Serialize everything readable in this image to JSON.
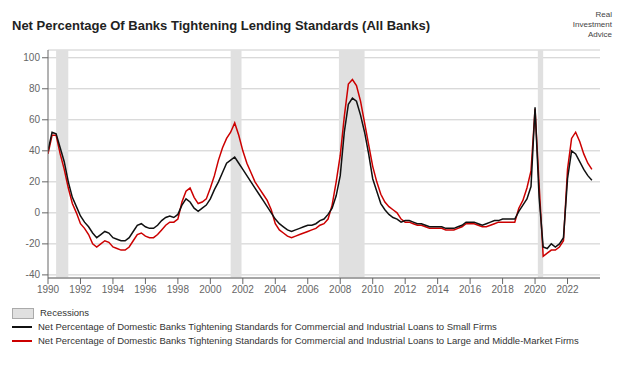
{
  "chart_data": {
    "type": "line",
    "title": "Net Percentage Of Banks Tightening Lending Standards (All Banks)",
    "annotations": [
      "Real\nInvestment\nAdvice"
    ],
    "x": [
      1990,
      1990.25,
      1990.5,
      1990.75,
      1991,
      1991.25,
      1991.5,
      1991.75,
      1992,
      1992.25,
      1992.5,
      1992.75,
      1993,
      1993.25,
      1993.5,
      1993.75,
      1994,
      1994.25,
      1994.5,
      1994.75,
      1995,
      1995.25,
      1995.5,
      1995.75,
      1996,
      1996.25,
      1996.5,
      1996.75,
      1997,
      1997.25,
      1997.5,
      1997.75,
      1998,
      1998.25,
      1998.5,
      1998.75,
      1999,
      1999.25,
      1999.5,
      1999.75,
      2000,
      2000.25,
      2000.5,
      2000.75,
      2001,
      2001.25,
      2001.5,
      2001.75,
      2002,
      2002.25,
      2002.5,
      2002.75,
      2003,
      2003.25,
      2003.5,
      2003.75,
      2004,
      2004.25,
      2004.5,
      2004.75,
      2005,
      2005.25,
      2005.5,
      2005.75,
      2006,
      2006.25,
      2006.5,
      2006.75,
      2007,
      2007.25,
      2007.5,
      2007.75,
      2008,
      2008.25,
      2008.5,
      2008.75,
      2009,
      2009.25,
      2009.5,
      2009.75,
      2010,
      2010.25,
      2010.5,
      2010.75,
      2011,
      2011.25,
      2011.5,
      2011.75,
      2012,
      2012.25,
      2012.5,
      2012.75,
      2013,
      2013.25,
      2013.5,
      2013.75,
      2014,
      2014.25,
      2014.5,
      2014.75,
      2015,
      2015.25,
      2015.5,
      2015.75,
      2016,
      2016.25,
      2016.5,
      2016.75,
      2017,
      2017.25,
      2017.5,
      2017.75,
      2018,
      2018.25,
      2018.5,
      2018.75,
      2019,
      2019.25,
      2019.5,
      2019.75,
      2020,
      2020.25,
      2020.5,
      2020.75,
      2021,
      2021.25,
      2021.5,
      2021.75,
      2022,
      2022.25,
      2022.5,
      2022.75,
      2023,
      2023.25,
      2023.5
    ],
    "series": [
      {
        "name": "Net Percentage of Domestic Banks Tightening Standards for Commercial and Industrial Loans to Small Firms",
        "color": "#111111",
        "values": [
          40,
          52,
          51,
          42,
          33,
          20,
          10,
          4,
          -2,
          -6,
          -9,
          -13,
          -16,
          -14,
          -12,
          -13,
          -16,
          -17,
          -18,
          -18,
          -16,
          -12,
          -8,
          -7,
          -9,
          -10,
          -10,
          -8,
          -5,
          -3,
          -2,
          -3,
          -1,
          5,
          9,
          7,
          3,
          1,
          3,
          5,
          9,
          15,
          20,
          26,
          32,
          34,
          36,
          32,
          28,
          24,
          20,
          16,
          12,
          8,
          4,
          0,
          -4,
          -7,
          -9,
          -11,
          -12,
          -11,
          -10,
          -9,
          -8,
          -8,
          -7,
          -5,
          -4,
          -1,
          3,
          11,
          24,
          52,
          70,
          74,
          72,
          63,
          52,
          38,
          22,
          14,
          6,
          2,
          -1,
          -3,
          -4,
          -6,
          -5,
          -5,
          -6,
          -7,
          -7,
          -8,
          -9,
          -9,
          -9,
          -9,
          -10,
          -10,
          -10,
          -9,
          -8,
          -6,
          -6,
          -6,
          -7,
          -8,
          -7,
          -6,
          -5,
          -5,
          -4,
          -4,
          -4,
          -4,
          1,
          5,
          9,
          17,
          68,
          10,
          -22,
          -23,
          -20,
          -22,
          -20,
          -16,
          22,
          40,
          38,
          33,
          28,
          24,
          21
        ]
      },
      {
        "name": "Net Percentage of Domestic Banks Tightening Standards for Commercial and Industrial Loans to Large and Middle-Market Firms",
        "color": "#cc0000",
        "values": [
          38,
          50,
          50,
          38,
          28,
          16,
          6,
          0,
          -7,
          -10,
          -14,
          -20,
          -22,
          -20,
          -18,
          -19,
          -22,
          -23,
          -24,
          -24,
          -22,
          -18,
          -14,
          -13,
          -15,
          -16,
          -16,
          -14,
          -11,
          -8,
          -6,
          -6,
          -4,
          7,
          14,
          16,
          10,
          6,
          7,
          9,
          16,
          24,
          34,
          42,
          48,
          52,
          58,
          50,
          40,
          32,
          26,
          20,
          16,
          12,
          8,
          2,
          -7,
          -11,
          -13,
          -15,
          -16,
          -15,
          -14,
          -13,
          -12,
          -11,
          -10,
          -8,
          -7,
          -4,
          5,
          20,
          37,
          62,
          83,
          86,
          82,
          72,
          58,
          44,
          30,
          20,
          12,
          7,
          4,
          2,
          0,
          -4,
          -6,
          -6,
          -7,
          -8,
          -8,
          -9,
          -10,
          -10,
          -10,
          -10,
          -11,
          -11,
          -11,
          -10,
          -9,
          -7,
          -7,
          -7,
          -8,
          -9,
          -9,
          -8,
          -7,
          -6,
          -6,
          -6,
          -6,
          -6,
          3,
          8,
          16,
          27,
          67,
          18,
          -28,
          -26,
          -24,
          -24,
          -22,
          -18,
          28,
          48,
          52,
          46,
          38,
          32,
          28
        ]
      }
    ],
    "shaded": {
      "name": "Recessions",
      "color": "#e0e0e0",
      "ranges": [
        [
          1990.5,
          1991.25
        ],
        [
          2001.25,
          2001.92
        ],
        [
          2007.92,
          2009.5
        ],
        [
          2020.17,
          2020.5
        ]
      ]
    },
    "xlim": [
      1990,
      2024
    ],
    "xticks": [
      1990,
      1992,
      1994,
      1996,
      1998,
      2000,
      2002,
      2004,
      2006,
      2008,
      2010,
      2012,
      2014,
      2016,
      2018,
      2020,
      2022
    ],
    "ylim": [
      -42,
      105
    ],
    "yticks": [
      100,
      80,
      60,
      40,
      20,
      0,
      -20,
      -40
    ],
    "grid": "y",
    "legend": "bottom"
  }
}
